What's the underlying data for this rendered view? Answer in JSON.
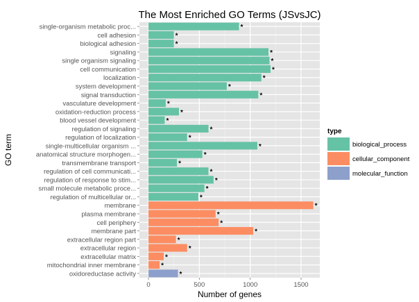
{
  "chart_data": {
    "type": "bar",
    "orientation": "horizontal",
    "title": "The Most Enriched GO Terms (JSvsJC)",
    "xlabel": "Number of genes",
    "ylabel": "GO term",
    "xlim": [
      0,
      1700
    ],
    "xticks": [
      0,
      500,
      1000,
      1500
    ],
    "grid": true,
    "legend": {
      "title": "type",
      "position": "right",
      "entries": [
        {
          "name": "biological_process",
          "color": "#66c2a5"
        },
        {
          "name": "cellular_component",
          "color": "#fc8d62"
        },
        {
          "name": "molecular_function",
          "color": "#8da0cb"
        }
      ]
    },
    "categories": [
      "single-organism metabolic proc...",
      "cell adhesion",
      "biological adhesion",
      "signaling",
      "single organism signaling",
      "cell communication",
      "localization",
      "system development",
      "signal transduction",
      "vasculature development",
      "oxidation-reduction process",
      "blood vessel development",
      "regulation of signaling",
      "regulation of localization",
      "single-multicellular organism ...",
      "anatomical structure morphogen...",
      "transmembrane transport",
      "regulation of cell communicati...",
      "regulation of response to stim...",
      "small molecule metabolic proce...",
      "regulation of multicellular or...",
      "membrane",
      "plasma membrane",
      "cell periphery",
      "membrane part",
      "extracellular region part",
      "extracellular region",
      "extracellular matrix",
      "mitochondrial inner membrane",
      "oxidoreductase activity"
    ],
    "values": [
      890,
      250,
      250,
      1180,
      1190,
      1200,
      1110,
      770,
      1080,
      170,
      300,
      160,
      590,
      380,
      1070,
      530,
      280,
      590,
      640,
      550,
      490,
      1620,
      660,
      690,
      1030,
      270,
      380,
      150,
      110,
      290
    ],
    "types": [
      "biological_process",
      "biological_process",
      "biological_process",
      "biological_process",
      "biological_process",
      "biological_process",
      "biological_process",
      "biological_process",
      "biological_process",
      "biological_process",
      "biological_process",
      "biological_process",
      "biological_process",
      "biological_process",
      "biological_process",
      "biological_process",
      "biological_process",
      "biological_process",
      "biological_process",
      "biological_process",
      "biological_process",
      "cellular_component",
      "cellular_component",
      "cellular_component",
      "cellular_component",
      "cellular_component",
      "cellular_component",
      "cellular_component",
      "cellular_component",
      "molecular_function"
    ],
    "annotation": "*"
  }
}
